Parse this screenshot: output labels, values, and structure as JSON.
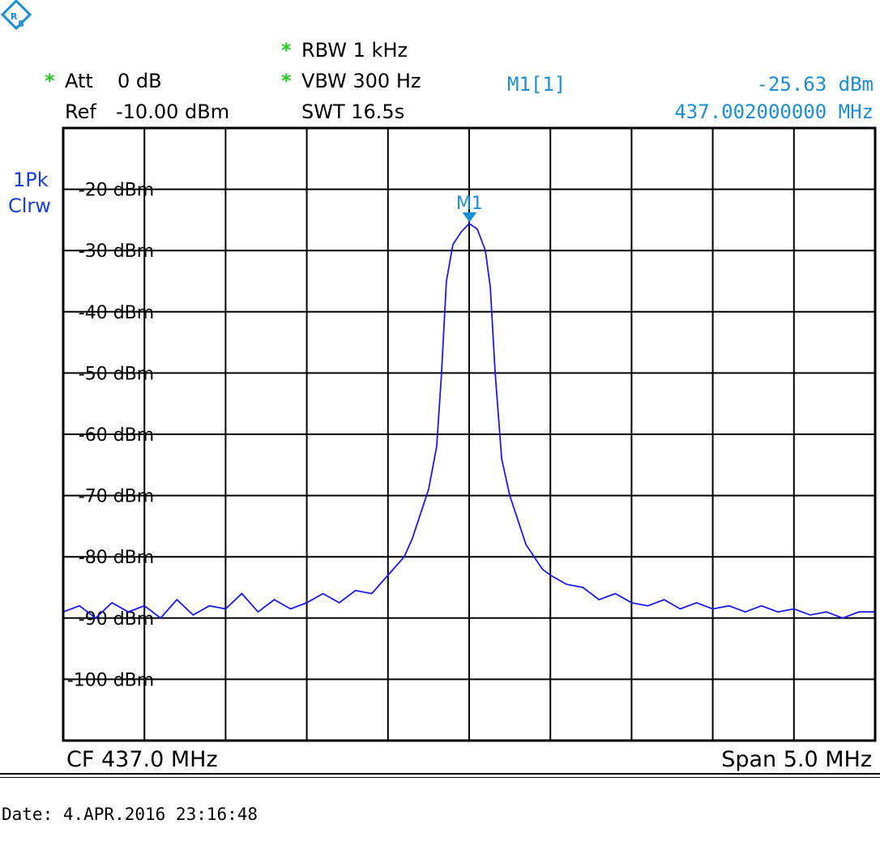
{
  "header": {
    "rbw_star": "*",
    "rbw": "RBW 1 kHz",
    "att_star": "*",
    "att": "Att",
    "att_val": "0 dB",
    "vbw_star": "*",
    "vbw": "VBW 300 Hz",
    "ref": "Ref",
    "ref_val": "-10.00 dBm",
    "swt": "SWT 16.5s",
    "marker_label": "M1[1]",
    "marker_level": "-25.63 dBm",
    "marker_freq": "437.002000000 MHz",
    "trace_mode_1": "1Pk",
    "trace_mode_2": "Clrw"
  },
  "footer": {
    "cf": "CF 437.0 MHz",
    "span": "Span 5.0 MHz",
    "date": "Date: 4.APR.2016  23:16:48"
  },
  "logo": "R&S",
  "colors": {
    "trace": "#1a1aee",
    "marker": "#1a8fd6",
    "grid": "#000000",
    "star": "#22cc22"
  },
  "chart_data": {
    "type": "line",
    "xlim": [
      434.5,
      439.5
    ],
    "ylim": [
      -110,
      -10
    ],
    "x_unit": "MHz",
    "y_unit": "dBm",
    "grid": true,
    "ytick_labels": [
      "-20 dBm",
      "-30 dBm",
      "-40 dBm",
      "-50 dBm",
      "-60 dBm",
      "-70 dBm",
      "-80 dBm",
      "-90 dBm",
      "-100 dBm"
    ],
    "yticks": [
      -20,
      -30,
      -40,
      -50,
      -60,
      -70,
      -80,
      -90,
      -100
    ],
    "marker": {
      "name": "M1",
      "x": 437.002,
      "y": -25.63
    },
    "series": [
      {
        "x": [
          434.5,
          434.6,
          434.7,
          434.8,
          434.9,
          435.0,
          435.1,
          435.2,
          435.3,
          435.4,
          435.5,
          435.6,
          435.7,
          435.8,
          435.9,
          436.0,
          436.1,
          436.2,
          436.3,
          436.4,
          436.5,
          436.6,
          436.65,
          436.7,
          436.75,
          436.8,
          436.83,
          436.86,
          436.9,
          436.95,
          437.0,
          437.05,
          437.1,
          437.13,
          437.16,
          437.2,
          437.25,
          437.3,
          437.35,
          437.4,
          437.45,
          437.5,
          437.6,
          437.7,
          437.8,
          437.9,
          438.0,
          438.1,
          438.2,
          438.3,
          438.4,
          438.5,
          438.6,
          438.7,
          438.8,
          438.9,
          439.0,
          439.1,
          439.2,
          439.3,
          439.4,
          439.5
        ],
        "y": [
          -89,
          -88,
          -90,
          -87.5,
          -89,
          -88,
          -90,
          -87,
          -89.5,
          -88,
          -88.5,
          -86,
          -89,
          -87,
          -88.5,
          -87.5,
          -86,
          -87.5,
          -85.5,
          -86,
          -83,
          -80,
          -77,
          -73,
          -69,
          -62,
          -50,
          -35,
          -29,
          -27,
          -25.6,
          -26.5,
          -30,
          -36,
          -50,
          -64,
          -70,
          -74,
          -78,
          -80,
          -82,
          -83,
          -84.5,
          -85,
          -87,
          -86,
          -87.5,
          -88,
          -87,
          -88.5,
          -87.5,
          -88.5,
          -88,
          -89,
          -88,
          -89,
          -88.5,
          -89.5,
          -89,
          -90,
          -89,
          -89
        ]
      }
    ]
  }
}
